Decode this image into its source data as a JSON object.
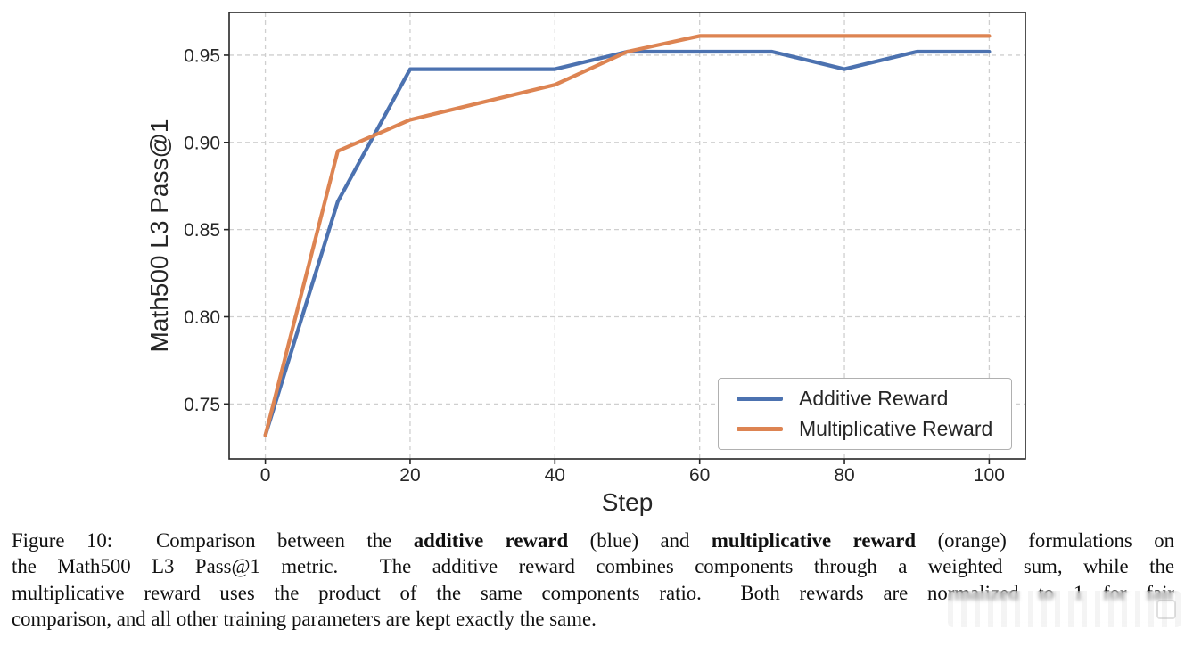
{
  "chart_data": {
    "type": "line",
    "title": "",
    "xlabel": "Step",
    "ylabel": "Math500 L3 Pass@1",
    "x": [
      0,
      10,
      20,
      30,
      40,
      50,
      60,
      70,
      80,
      90,
      100
    ],
    "series": [
      {
        "name": "Additive Reward",
        "color": "#4C72B0",
        "values": [
          0.732,
          0.866,
          0.942,
          0.942,
          0.942,
          0.952,
          0.952,
          0.952,
          0.942,
          0.952,
          0.952
        ]
      },
      {
        "name": "Multiplicative Reward",
        "color": "#DD8452",
        "values": [
          0.732,
          0.895,
          0.913,
          0.923,
          0.933,
          0.952,
          0.961,
          0.961,
          0.961,
          0.961,
          0.961
        ]
      }
    ],
    "xticks": [
      0,
      20,
      40,
      60,
      80,
      100
    ],
    "yticks": [
      0.75,
      0.8,
      0.85,
      0.9,
      0.95
    ],
    "ytick_labels": [
      "0.75",
      "0.80",
      "0.85",
      "0.90",
      "0.95"
    ],
    "xlim": [
      -5,
      105
    ],
    "ylim": [
      0.7185,
      0.9745
    ],
    "grid": true,
    "grid_style": "dashed",
    "legend_position": "lower right"
  },
  "legend": {
    "items": [
      {
        "label": "Additive Reward",
        "color": "#4C72B0"
      },
      {
        "label": "Multiplicative Reward",
        "color": "#DD8452"
      }
    ]
  },
  "caption": {
    "lines": [
      {
        "last": false,
        "segments": [
          {
            "text": "Figure 10:  Comparison between the ",
            "bold": false
          },
          {
            "text": "additive reward",
            "bold": true
          },
          {
            "text": " (blue) and ",
            "bold": false
          },
          {
            "text": "multiplicative reward",
            "bold": true
          },
          {
            "text": " (orange) formulations on",
            "bold": false
          }
        ]
      },
      {
        "last": false,
        "segments": [
          {
            "text": "the Math500 L3 Pass@1 metric.  The additive reward combines components through a weighted sum, while the",
            "bold": false
          }
        ]
      },
      {
        "last": false,
        "segments": [
          {
            "text": "multiplicative reward uses the product of the same components ratio.  Both rewards are normalized to 1 for fair",
            "bold": false
          }
        ]
      },
      {
        "last": true,
        "segments": [
          {
            "text": "comparison, and all other training parameters are kept exactly the same.",
            "bold": false
          }
        ]
      }
    ]
  },
  "colors": {
    "axis": "#262626",
    "grid": "#cfcfcf",
    "legend_border": "#b0b0b0",
    "background": "#ffffff"
  }
}
